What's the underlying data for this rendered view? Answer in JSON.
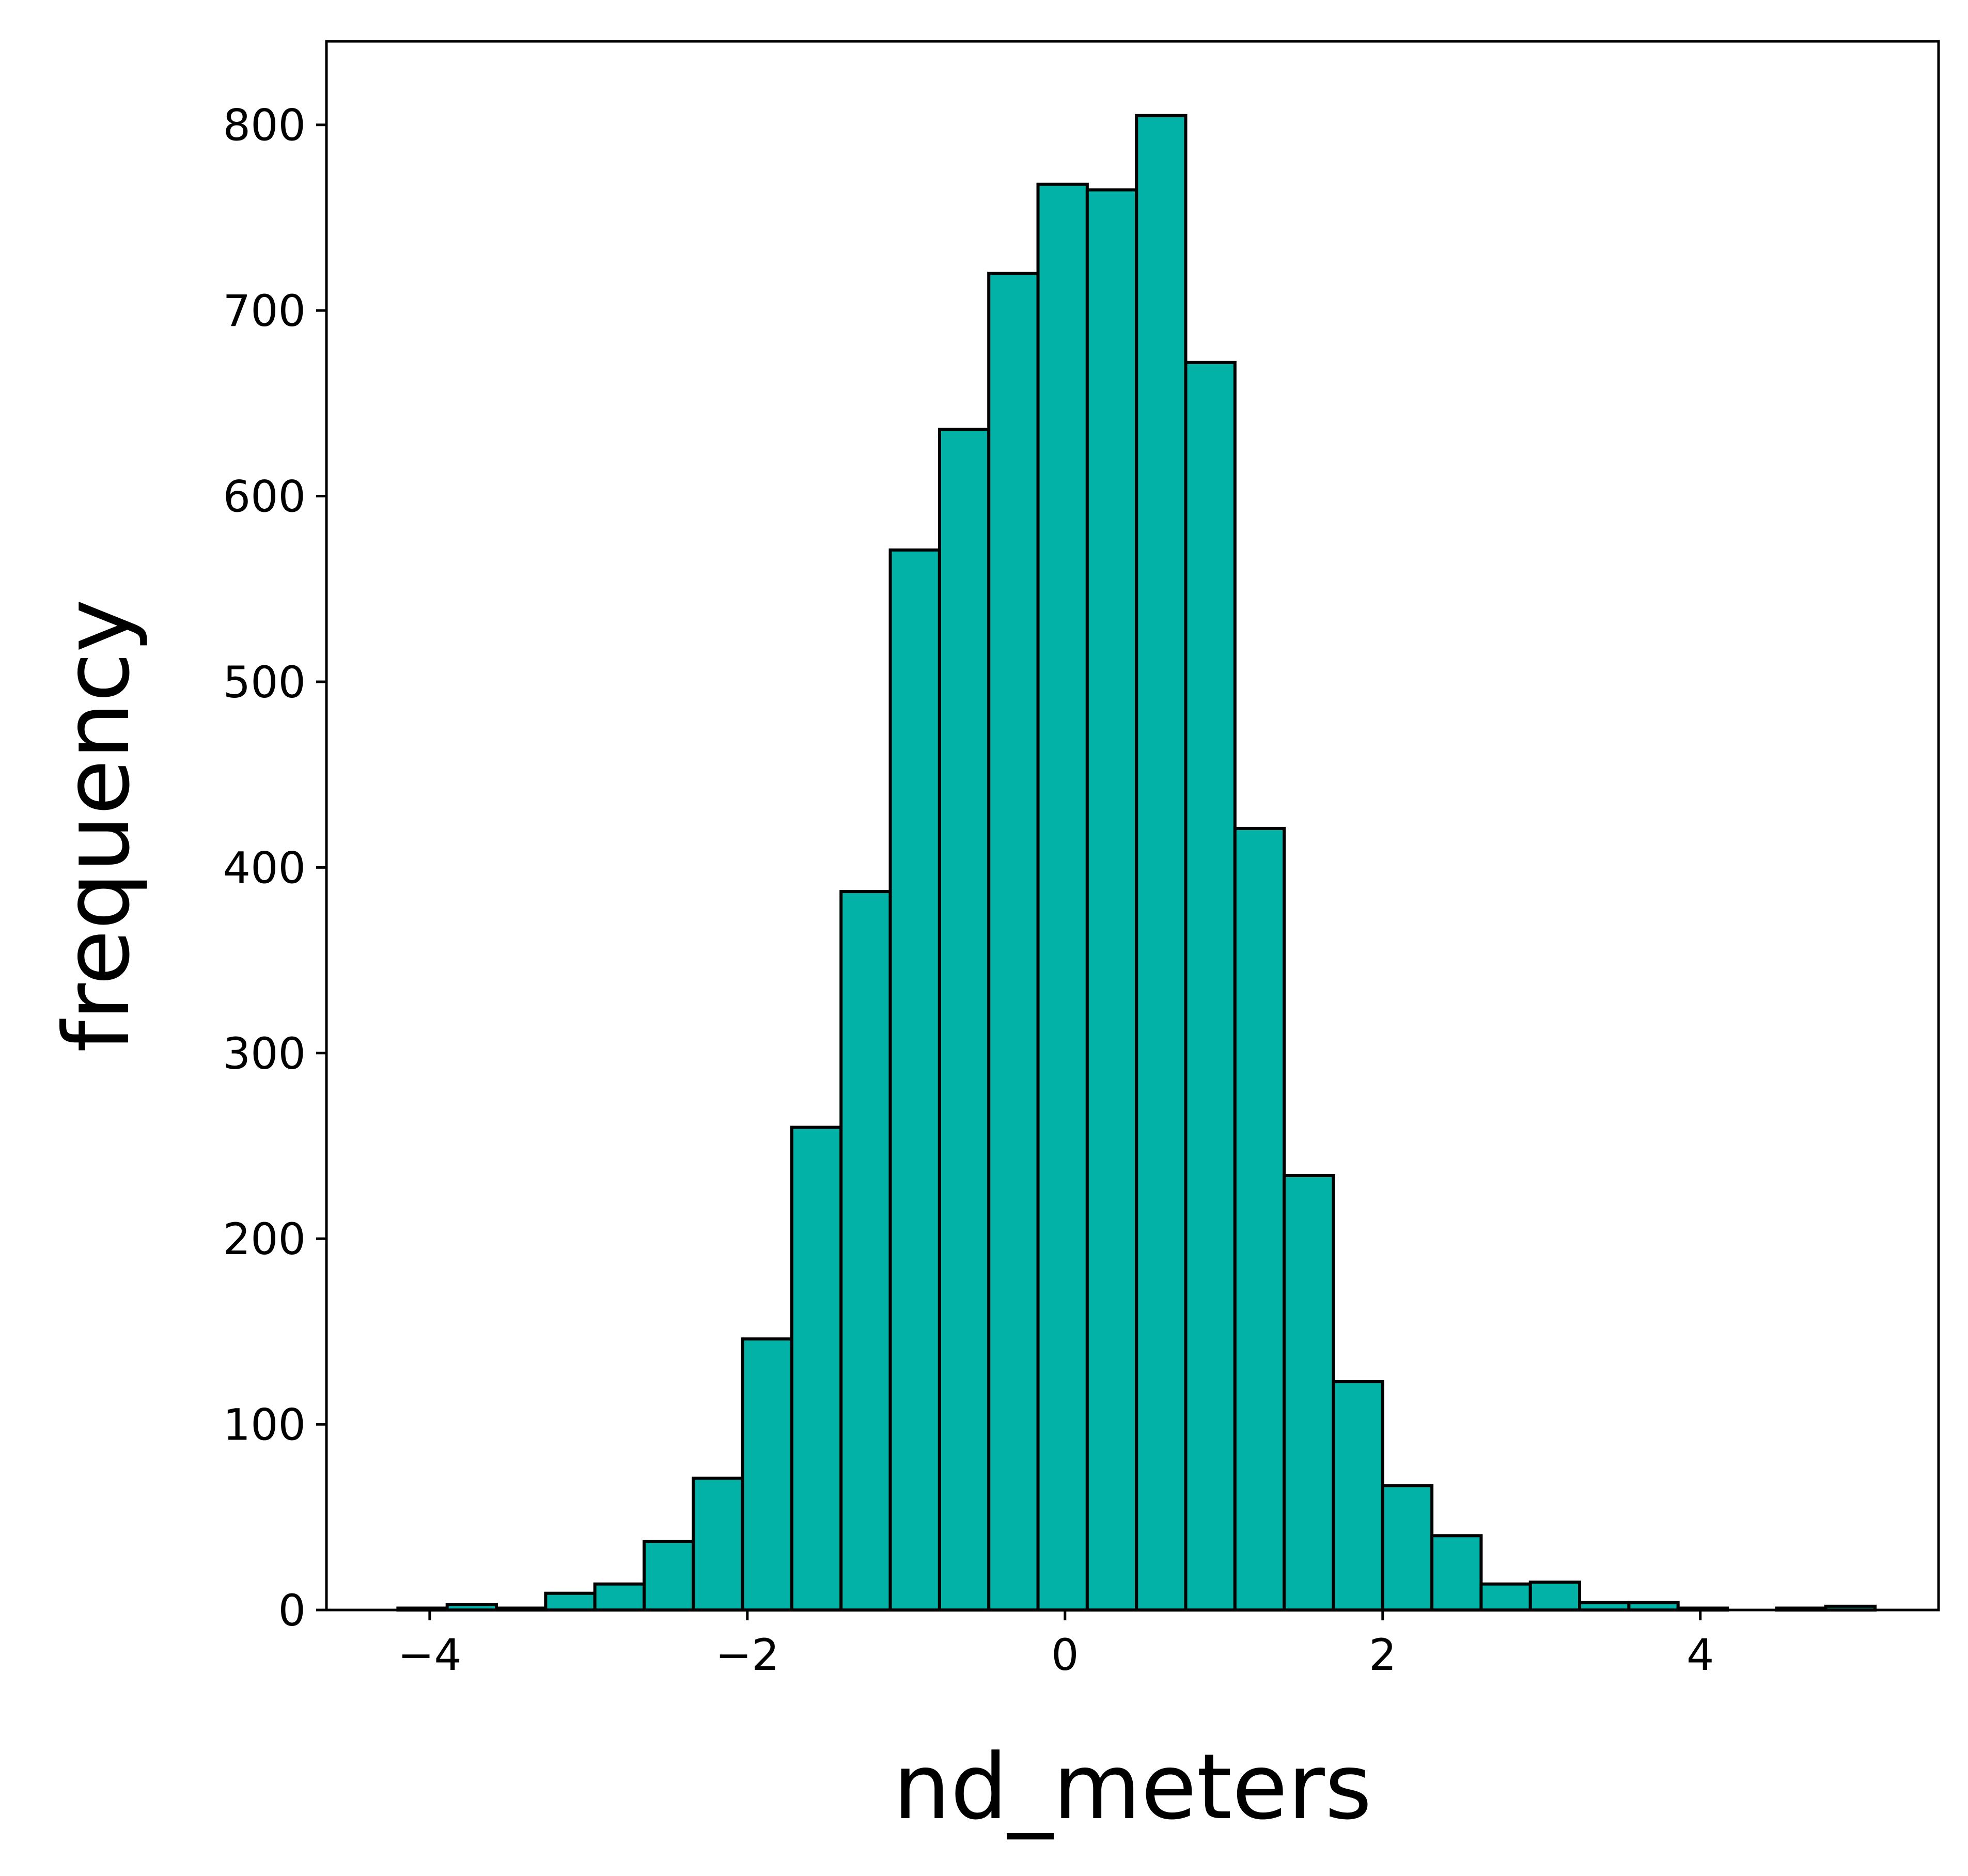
{
  "chart_data": {
    "type": "bar",
    "subtype": "histogram",
    "xlabel": "nd_meters",
    "ylabel": "frequency",
    "xlim": [
      -4.65,
      5.5
    ],
    "ylim": [
      0,
      845
    ],
    "xticks": [
      -4,
      -2,
      0,
      2,
      4
    ],
    "xtick_labels": [
      "−4",
      "−2",
      "0",
      "2",
      "4"
    ],
    "yticks": [
      0,
      100,
      200,
      300,
      400,
      500,
      600,
      700,
      800
    ],
    "ytick_labels": [
      "0",
      "100",
      "200",
      "300",
      "400",
      "500",
      "600",
      "700",
      "800"
    ],
    "bin_edges": [
      -4.2,
      -3.89,
      -3.58,
      -3.27,
      -2.96,
      -2.65,
      -2.34,
      -2.03,
      -1.72,
      -1.41,
      -1.1,
      -0.79,
      -0.48,
      -0.17,
      0.14,
      0.45,
      0.76,
      1.07,
      1.38,
      1.69,
      2.0,
      2.31,
      2.62,
      2.93,
      3.24,
      3.55,
      3.86,
      4.17,
      4.48,
      4.79,
      5.1
    ],
    "values": [
      1,
      3,
      1,
      9,
      14,
      37,
      71,
      146,
      260,
      387,
      571,
      636,
      720,
      768,
      765,
      805,
      672,
      421,
      234,
      123,
      67,
      40,
      14,
      15,
      4,
      4,
      1,
      0,
      1,
      2
    ],
    "colors": {
      "bar_fill": "#02b2a6",
      "bar_edge": "#000000",
      "axis": "#000000"
    },
    "grid": false,
    "legend": "none"
  }
}
